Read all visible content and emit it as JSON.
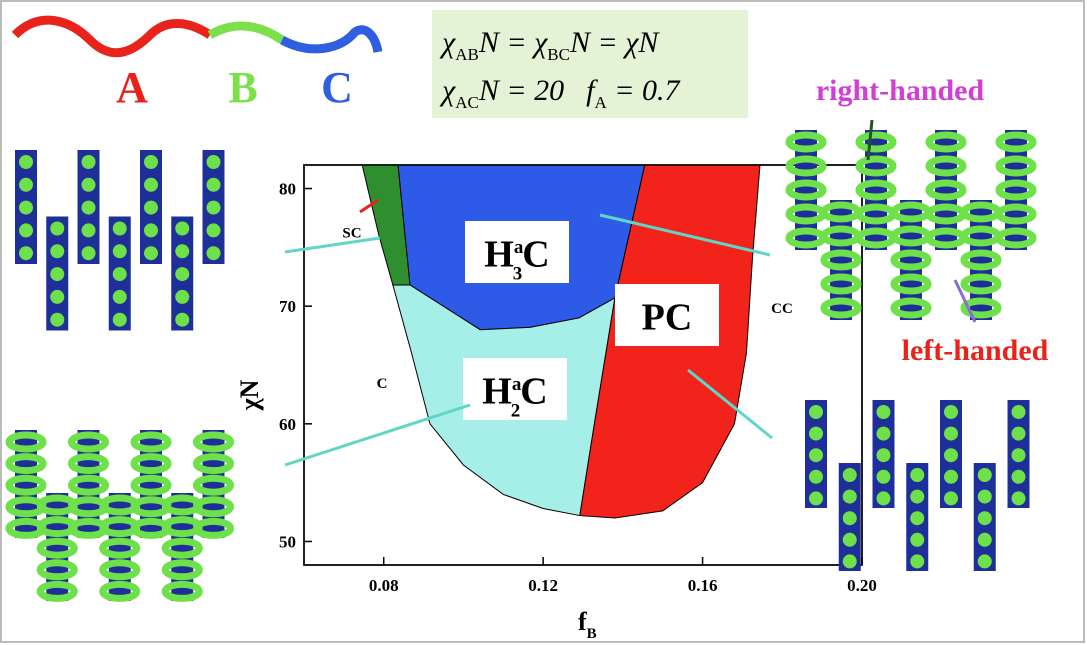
{
  "chart_data": {
    "type": "phase-diagram",
    "xlabel": "f",
    "xlabel_sub": "B",
    "ylabel": "χN",
    "xlim": [
      0.06,
      0.2
    ],
    "ylim": [
      48,
      82
    ],
    "xticks": [
      0.08,
      0.12,
      0.16,
      {
        "value": 0.2,
        "label": "0.20"
      }
    ],
    "yticks": [
      50,
      60,
      70,
      80
    ],
    "regions": [
      {
        "name": "SC",
        "color": "#2f8f2f",
        "x": [
          0.0746,
          0.0836,
          0.0866,
          0.0823,
          0.0788
        ],
        "y": [
          82,
          82,
          71.8,
          71.8,
          76
        ]
      },
      {
        "name": {
          "main": "H",
          "sup": "a",
          "sub": "3",
          "end": "C"
        },
        "color": "#2d5be8",
        "x": [
          0.0836,
          0.1455,
          0.138,
          0.129,
          0.1167,
          0.1042,
          0.0866
        ],
        "y": [
          82,
          82,
          70.7,
          69,
          68.2,
          68,
          71.8
        ]
      },
      {
        "name": {
          "main": "H",
          "sup": "a",
          "sub": "2",
          "end": "C"
        },
        "color": "#a6efe9",
        "x": [
          0.0823,
          0.0866,
          0.1042,
          0.1167,
          0.129,
          0.138,
          0.133,
          0.1292,
          0.12,
          0.11,
          0.1,
          0.0916,
          0.087
        ],
        "y": [
          71.8,
          71.8,
          68,
          68.2,
          69,
          70.7,
          60.3,
          52.2,
          52.8,
          54,
          56.5,
          60,
          66
        ]
      },
      {
        "name": "PC",
        "color": "#f2231b",
        "x": [
          0.1455,
          0.1744,
          0.1725,
          0.171,
          0.168,
          0.16,
          0.15,
          0.138,
          0.1292,
          0.133,
          0.138
        ],
        "y": [
          82,
          82,
          74,
          66,
          60,
          55,
          52.6,
          52,
          52.2,
          60.3,
          70.7
        ]
      }
    ],
    "phase_notes": [
      "C",
      "CC"
    ],
    "blocks": [
      "A",
      "B",
      "C"
    ],
    "block_colors": [
      "#e8231b",
      "#7be04a",
      "#2f5ee0"
    ],
    "formula": {
      "line1": [
        "χ",
        "AB",
        "N = χ",
        "BC",
        "N = χN"
      ],
      "line2": [
        "χ",
        "AC",
        "N = 20",
        "f",
        "A",
        " = 0.7"
      ]
    },
    "handedness": [
      "right-handed",
      "left-handed"
    ]
  }
}
